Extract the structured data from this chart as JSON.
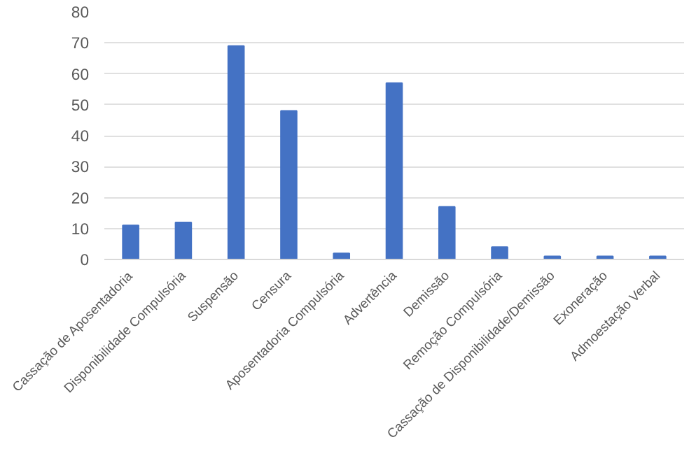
{
  "chart_data": {
    "type": "bar",
    "categories": [
      "Cassação de Aposentadoria",
      "Disponibilidade Compulsória",
      "Suspensão",
      "Censura",
      "Aposentadoria Compulsória",
      "Advertência",
      "Demissão",
      "Remoção Compulsória",
      "Cassação de Disponibilidade/Demissão",
      "Exoneração",
      "Admoestação Verbal"
    ],
    "values": [
      11,
      12,
      69,
      48,
      2,
      57,
      17,
      4,
      1,
      1,
      1
    ],
    "color": "#4472c4",
    "ylim": [
      0,
      80
    ],
    "yticks": [
      0,
      10,
      20,
      30,
      40,
      50,
      60,
      70,
      80
    ],
    "grid": "y"
  }
}
